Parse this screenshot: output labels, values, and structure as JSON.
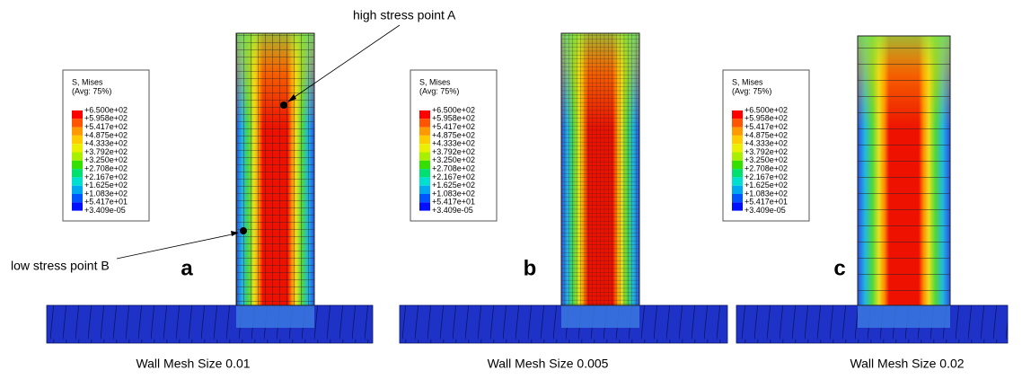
{
  "panels": [
    {
      "label": "a",
      "caption": "Wall Mesh Size 0.01",
      "legend": {
        "title": "S, Mises",
        "subtitle": "(Avg: 75%)",
        "levels": [
          "+6.500e+02",
          "+5.958e+02",
          "+5.417e+02",
          "+4.875e+02",
          "+4.333e+02",
          "+3.792e+02",
          "+3.250e+02",
          "+2.708e+02",
          "+2.167e+02",
          "+1.625e+02",
          "+1.083e+02",
          "+5.417e+01",
          "+3.409e-05"
        ]
      }
    },
    {
      "label": "b",
      "caption": "Wall Mesh Size 0.005",
      "legend": {
        "title": "S, Mises",
        "subtitle": "(Avg: 75%)",
        "levels": [
          "+6.500e+02",
          "+5.958e+02",
          "+5.417e+02",
          "+4.875e+02",
          "+4.333e+02",
          "+3.792e+02",
          "+3.250e+02",
          "+2.708e+02",
          "+2.167e+02",
          "+1.625e+02",
          "+1.083e+02",
          "+5.417e+01",
          "+3.409e-05"
        ]
      }
    },
    {
      "label": "c",
      "caption": "Wall Mesh Size 0.02",
      "legend": {
        "title": "S, Mises",
        "subtitle": "(Avg: 75%)",
        "levels": [
          "+6.500e+02",
          "+5.958e+02",
          "+5.417e+02",
          "+4.875e+02",
          "+4.333e+02",
          "+3.792e+02",
          "+3.250e+02",
          "+2.708e+02",
          "+2.167e+02",
          "+1.625e+02",
          "+1.083e+02",
          "+5.417e+01",
          "+3.409e-05"
        ]
      }
    }
  ],
  "annotations": [
    {
      "text": "high stress point A"
    },
    {
      "text": "low stress point B"
    }
  ]
}
